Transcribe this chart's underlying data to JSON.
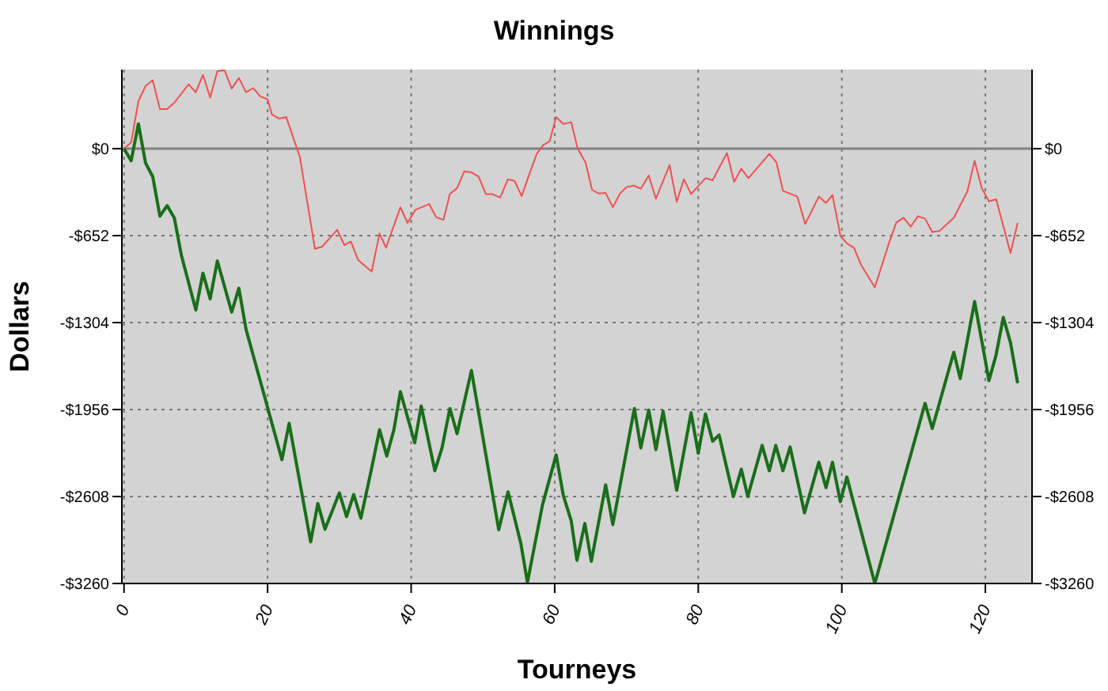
{
  "chart_data": {
    "type": "line",
    "title": "Winnings",
    "xlabel": "Tourneys",
    "ylabel": "Dollars",
    "xlim": [
      -0.3,
      126.5
    ],
    "xticks": [
      0,
      20,
      40,
      60,
      80,
      100,
      120
    ],
    "ylim": [
      -3260,
      593
    ],
    "yticks": [
      {
        "value": 0,
        "label": "$0"
      },
      {
        "value": -652,
        "label": "-$652"
      },
      {
        "value": -1304,
        "label": "-$1304"
      },
      {
        "value": -1956,
        "label": "-$1956"
      },
      {
        "value": -2608,
        "label": "-$2608"
      },
      {
        "value": -3260,
        "label": "-$3260"
      }
    ],
    "y2lim": [
      -3260,
      593
    ],
    "y2ticks": [
      {
        "value": 0,
        "label": "$0"
      },
      {
        "value": -652,
        "label": "-$652"
      },
      {
        "value": -1304,
        "label": "-$1304"
      },
      {
        "value": -1956,
        "label": "-$1956"
      },
      {
        "value": -2608,
        "label": "-$2608"
      },
      {
        "value": -3260,
        "label": "-$3260"
      }
    ],
    "grid": true,
    "marker": "none",
    "line_style": "solid",
    "ref_lines": [
      {
        "axis": "y",
        "value": 0,
        "color": "#808080",
        "line_style": "solid"
      }
    ],
    "series": [
      {
        "color": "#f05050",
        "x": [
          0,
          1,
          2,
          3,
          4,
          5,
          6,
          7,
          9,
          10,
          11,
          12,
          13,
          14,
          15,
          16,
          17,
          18,
          19,
          20,
          20.6,
          21.6,
          22.6,
          24.5,
          26.6,
          27.6,
          29.7,
          30.7,
          31.6,
          32.6,
          34.5,
          35.6,
          36.5,
          38.5,
          39.5,
          40.6,
          42.5,
          43.5,
          44.5,
          45.4,
          46.4,
          47.4,
          48.4,
          49.4,
          50.4,
          51.3,
          52.4,
          53.5,
          54.4,
          55.4,
          56.4,
          57.5,
          58.4,
          59.3,
          60.2,
          61.2,
          62.3,
          63.2,
          64.3,
          65.2,
          66.1,
          67.1,
          68.1,
          69.1,
          70,
          71,
          72,
          73.1,
          74.1,
          76,
          77,
          78,
          79,
          81,
          82,
          84,
          85,
          86,
          87,
          89.9,
          90.9,
          91.8,
          93.8,
          94.9,
          96.8,
          97.8,
          98.7,
          99.8,
          100.7,
          101.7,
          102.7,
          104.6,
          106.6,
          107.6,
          108.6,
          109.6,
          110.6,
          111.6,
          112.6,
          113.6,
          115.6,
          117.5,
          118.5,
          119.5,
          120.5,
          121.5,
          123.5,
          124.5
        ],
        "values": [
          0,
          47,
          356,
          470,
          513,
          296,
          296,
          344,
          482,
          423,
          553,
          383,
          581,
          589,
          450,
          530,
          423,
          454,
          391,
          371,
          257,
          225,
          237,
          -63,
          -751,
          -735,
          -608,
          -723,
          -696,
          -834,
          -921,
          -636,
          -743,
          -439,
          -557,
          -458,
          -415,
          -514,
          -534,
          -340,
          -296,
          -170,
          -178,
          -210,
          -340,
          -340,
          -367,
          -229,
          -241,
          -356,
          -201,
          -39,
          28,
          55,
          237,
          186,
          198,
          0,
          -103,
          -308,
          -336,
          -332,
          -439,
          -336,
          -288,
          -277,
          -300,
          -201,
          -375,
          -123,
          -399,
          -229,
          -340,
          -221,
          -237,
          -32,
          -249,
          -150,
          -221,
          -39,
          -103,
          -316,
          -359,
          -565,
          -359,
          -407,
          -348,
          -652,
          -711,
          -743,
          -873,
          -1040,
          -703,
          -553,
          -518,
          -585,
          -506,
          -525,
          -625,
          -617,
          -518,
          -320,
          -91,
          -296,
          -395,
          -379,
          -782,
          -557
        ]
      },
      {
        "color": "#1a6e1a",
        "x": [
          0,
          1,
          2,
          3,
          4,
          5,
          6,
          7,
          8,
          10,
          11,
          12,
          13,
          15,
          16,
          17,
          22,
          23,
          26,
          27,
          28,
          30,
          31,
          32,
          33,
          34.5,
          35.6,
          36.6,
          37.6,
          38.5,
          40.5,
          41.4,
          43.3,
          44.3,
          45.4,
          46.4,
          48.4,
          52.2,
          53.5,
          55.3,
          56.2,
          58.3,
          60.2,
          61.2,
          62.3,
          63.1,
          64.2,
          65.1,
          67.1,
          68.1,
          71.1,
          72,
          73.1,
          74.1,
          75.1,
          77,
          79,
          80,
          81,
          82,
          82.9,
          84.9,
          86,
          86.9,
          88.9,
          89.9,
          90.8,
          91.8,
          92.8,
          94.8,
          96.8,
          97.8,
          98.7,
          99.8,
          100.7,
          104.6,
          111.6,
          112.6,
          115.6,
          116.5,
          118.5,
          120.5,
          121.5,
          122.5,
          123.5,
          124.5
        ],
        "values": [
          0,
          -91,
          186,
          -107,
          -210,
          -506,
          -427,
          -518,
          -802,
          -1209,
          -933,
          -1126,
          -842,
          -1225,
          -1047,
          -1355,
          -2332,
          -2059,
          -2948,
          -2660,
          -2853,
          -2581,
          -2759,
          -2593,
          -2770,
          -2395,
          -2107,
          -2304,
          -2107,
          -1822,
          -2205,
          -1929,
          -2415,
          -2244,
          -1948,
          -2137,
          -1663,
          -2857,
          -2573,
          -2964,
          -3252,
          -2671,
          -2296,
          -2600,
          -2790,
          -3086,
          -2810,
          -3094,
          -2521,
          -2818,
          -1948,
          -2244,
          -1960,
          -2256,
          -1968,
          -2561,
          -1980,
          -2284,
          -1988,
          -2193,
          -2146,
          -2608,
          -2403,
          -2608,
          -2225,
          -2415,
          -2225,
          -2415,
          -2237,
          -2730,
          -2351,
          -2541,
          -2351,
          -2647,
          -2462,
          -3260,
          -1909,
          -2098,
          -1526,
          -1723,
          -1146,
          -1739,
          -1545,
          -1265,
          -1454,
          -1758
        ]
      }
    ]
  }
}
